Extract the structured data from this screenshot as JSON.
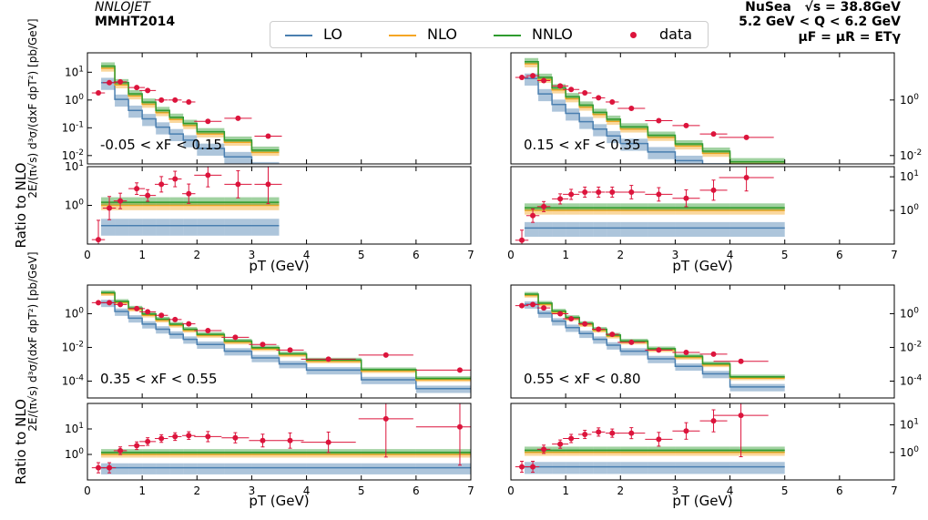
{
  "header": {
    "program": "NNLOJET",
    "pdf": "MMHT2014",
    "experiment": "NuSea",
    "energy": "√s = 38.8GeV",
    "q_range": "5.2 GeV < Q < 6.2 GeV",
    "scale": "μF = μR = ETγ"
  },
  "legend": {
    "items": [
      {
        "label": "LO",
        "color": "#4a7fb0"
      },
      {
        "label": "NLO",
        "color": "#f5a623"
      },
      {
        "label": "NNLO",
        "color": "#2e9b2e"
      },
      {
        "label": "data",
        "color": "#dc143c"
      }
    ]
  },
  "axis_text": {
    "xlabel": "pT (GeV)",
    "ylabel_main": "2E/(π√s) d³σ/(dxF dpT²) [pb/GeV]",
    "ylabel_ratio": "Ratio to NLO"
  },
  "chart_data": [
    {
      "type": "line",
      "panel": "top-left",
      "label": "-0.05 < xF < 0.15",
      "ylog": true,
      "ylim": [
        0.005,
        50
      ],
      "xlim": [
        0,
        7
      ],
      "ratio_ylim": [
        0.1,
        10
      ],
      "xticks": [
        0,
        1,
        2,
        3,
        4,
        5,
        6,
        7
      ],
      "yticks_main": [
        "10^-2",
        "10^-1",
        "10^0",
        "10^1"
      ],
      "yticks_ratio": [
        "10^0",
        "10^1"
      ],
      "bins": [
        0.25,
        0.5,
        0.75,
        1.0,
        1.25,
        1.5,
        1.75,
        2.0,
        2.5,
        3.0,
        3.5
      ],
      "NLO": [
        14,
        3.5,
        1.4,
        0.7,
        0.35,
        0.2,
        0.12,
        0.06,
        0.03,
        0.013
      ],
      "data": [
        {
          "x": 0.2,
          "y": 1.8,
          "xerr": 0.12,
          "yerr_ratio": 0.5,
          "ratio": 0.13
        },
        {
          "x": 0.4,
          "y": 4.2,
          "xerr": 0.12,
          "yerr_ratio": 0.3,
          "ratio": 0.85
        },
        {
          "x": 0.6,
          "y": 4.5,
          "xerr": 0.12,
          "yerr_ratio": 0.2,
          "ratio": 1.3
        },
        {
          "x": 0.9,
          "y": 2.8,
          "xerr": 0.15,
          "yerr_ratio": 0.15,
          "ratio": 2.7
        },
        {
          "x": 1.1,
          "y": 2.2,
          "xerr": 0.15,
          "yerr_ratio": 0.15,
          "ratio": 1.8
        },
        {
          "x": 1.35,
          "y": 1.0,
          "xerr": 0.12,
          "yerr_ratio": 0.2,
          "ratio": 3.5
        },
        {
          "x": 1.6,
          "y": 1.0,
          "xerr": 0.12,
          "yerr_ratio": 0.2,
          "ratio": 4.8
        },
        {
          "x": 1.85,
          "y": 0.85,
          "xerr": 0.12,
          "yerr_ratio": 0.25,
          "ratio": 2.0
        },
        {
          "x": 2.2,
          "y": 0.17,
          "xerr": 0.25,
          "yerr_ratio": 0.3,
          "ratio": 6.0
        },
        {
          "x": 2.75,
          "y": 0.22,
          "xerr": 0.25,
          "yerr_ratio": 0.35,
          "ratio": 3.5
        },
        {
          "x": 3.3,
          "y": 0.05,
          "xerr": 0.25,
          "yerr_ratio": 0.5,
          "ratio": 3.5
        }
      ]
    },
    {
      "type": "line",
      "panel": "top-right",
      "label": "0.15 < xF < 0.35",
      "ylog": true,
      "ylim": [
        0.005,
        50
      ],
      "xlim": [
        0,
        7
      ],
      "ratio_ylim": [
        0.1,
        20
      ],
      "xticks": [
        0,
        1,
        2,
        3,
        4,
        5,
        6,
        7
      ],
      "yticks_main": [
        "10^-2",
        "10^0"
      ],
      "yticks_ratio": [
        "10^0",
        "10^1"
      ],
      "bins": [
        0.25,
        0.5,
        0.75,
        1.0,
        1.25,
        1.5,
        1.75,
        2.0,
        2.5,
        3.0,
        3.5,
        4.0,
        5.0
      ],
      "NLO": [
        20,
        5.5,
        2.3,
        1.1,
        0.55,
        0.3,
        0.17,
        0.09,
        0.045,
        0.022,
        0.012,
        0.005
      ],
      "data": [
        {
          "x": 0.2,
          "y": 6.5,
          "xerr": 0.12,
          "yerr_ratio": 0.3,
          "ratio": 0.13
        },
        {
          "x": 0.4,
          "y": 7.5,
          "xerr": 0.12,
          "yerr_ratio": 0.2,
          "ratio": 0.7
        },
        {
          "x": 0.6,
          "y": 5.0,
          "xerr": 0.12,
          "yerr_ratio": 0.15,
          "ratio": 1.3
        },
        {
          "x": 0.9,
          "y": 3.2,
          "xerr": 0.15,
          "yerr_ratio": 0.15,
          "ratio": 2.2
        },
        {
          "x": 1.1,
          "y": 2.4,
          "xerr": 0.15,
          "yerr_ratio": 0.15,
          "ratio": 3.0
        },
        {
          "x": 1.35,
          "y": 1.8,
          "xerr": 0.12,
          "yerr_ratio": 0.15,
          "ratio": 3.5
        },
        {
          "x": 1.6,
          "y": 1.2,
          "xerr": 0.12,
          "yerr_ratio": 0.15,
          "ratio": 3.5
        },
        {
          "x": 1.85,
          "y": 0.85,
          "xerr": 0.12,
          "yerr_ratio": 0.15,
          "ratio": 3.5
        },
        {
          "x": 2.2,
          "y": 0.5,
          "xerr": 0.25,
          "yerr_ratio": 0.2,
          "ratio": 3.5
        },
        {
          "x": 2.7,
          "y": 0.18,
          "xerr": 0.25,
          "yerr_ratio": 0.2,
          "ratio": 3.0
        },
        {
          "x": 3.2,
          "y": 0.12,
          "xerr": 0.25,
          "yerr_ratio": 0.25,
          "ratio": 2.3
        },
        {
          "x": 3.7,
          "y": 0.06,
          "xerr": 0.25,
          "yerr_ratio": 0.3,
          "ratio": 4.0
        },
        {
          "x": 4.3,
          "y": 0.045,
          "xerr": 0.5,
          "yerr_ratio": 0.4,
          "ratio": 9.5
        }
      ]
    },
    {
      "type": "line",
      "panel": "bottom-left",
      "label": "0.35 < xF < 0.55",
      "ylog": true,
      "ylim": [
        1e-05,
        50
      ],
      "xlim": [
        0,
        7
      ],
      "ratio_ylim": [
        0.1,
        100
      ],
      "xticks": [
        0,
        1,
        2,
        3,
        4,
        5,
        6,
        7
      ],
      "yticks_main": [
        "10^-4",
        "10^-2",
        "10^0"
      ],
      "yticks_ratio": [
        "10^0",
        "10^1"
      ],
      "bins": [
        0.25,
        0.5,
        0.75,
        1.0,
        1.25,
        1.5,
        1.75,
        2.0,
        2.5,
        3.0,
        3.5,
        4.0,
        5.0,
        6.0,
        7.0
      ],
      "NLO": [
        15,
        4.5,
        1.8,
        0.8,
        0.4,
        0.2,
        0.1,
        0.05,
        0.02,
        0.008,
        0.0035,
        0.0015,
        0.0004,
        0.00012
      ],
      "data": [
        {
          "x": 0.2,
          "y": 4.5,
          "xerr": 0.12,
          "yerr_ratio": 0.2,
          "ratio": 0.3
        },
        {
          "x": 0.4,
          "y": 4.5,
          "xerr": 0.12,
          "yerr_ratio": 0.2,
          "ratio": 0.3
        },
        {
          "x": 0.6,
          "y": 3.5,
          "xerr": 0.12,
          "yerr_ratio": 0.15,
          "ratio": 1.4
        },
        {
          "x": 0.9,
          "y": 2.0,
          "xerr": 0.15,
          "yerr_ratio": 0.15,
          "ratio": 2.2
        },
        {
          "x": 1.1,
          "y": 1.3,
          "xerr": 0.15,
          "yerr_ratio": 0.15,
          "ratio": 3.2
        },
        {
          "x": 1.35,
          "y": 0.8,
          "xerr": 0.12,
          "yerr_ratio": 0.15,
          "ratio": 4.2
        },
        {
          "x": 1.6,
          "y": 0.45,
          "xerr": 0.12,
          "yerr_ratio": 0.15,
          "ratio": 5.0
        },
        {
          "x": 1.85,
          "y": 0.25,
          "xerr": 0.12,
          "yerr_ratio": 0.15,
          "ratio": 5.5
        },
        {
          "x": 2.2,
          "y": 0.1,
          "xerr": 0.25,
          "yerr_ratio": 0.2,
          "ratio": 5.0
        },
        {
          "x": 2.7,
          "y": 0.04,
          "xerr": 0.25,
          "yerr_ratio": 0.2,
          "ratio": 4.5
        },
        {
          "x": 3.2,
          "y": 0.015,
          "xerr": 0.25,
          "yerr_ratio": 0.25,
          "ratio": 3.5
        },
        {
          "x": 3.7,
          "y": 0.007,
          "xerr": 0.25,
          "yerr_ratio": 0.3,
          "ratio": 3.5
        },
        {
          "x": 4.4,
          "y": 0.002,
          "xerr": 0.5,
          "yerr_ratio": 0.4,
          "ratio": 3.0
        },
        {
          "x": 5.45,
          "y": 0.0035,
          "xerr": 0.5,
          "yerr_ratio": 1.5,
          "ratio": 25
        },
        {
          "x": 6.8,
          "y": 0.00045,
          "xerr": 0.8,
          "yerr_ratio": 1.5,
          "ratio": 12
        }
      ]
    },
    {
      "type": "line",
      "panel": "bottom-right",
      "label": "0.55 < xF < 0.80",
      "ylog": true,
      "ylim": [
        1e-05,
        50
      ],
      "xlim": [
        0,
        7
      ],
      "ratio_ylim": [
        0.1,
        60
      ],
      "xticks": [
        0,
        1,
        2,
        3,
        4,
        5,
        6,
        7
      ],
      "yticks_main": [
        "10^-4",
        "10^-2",
        "10^0"
      ],
      "yticks_ratio": [
        "10^0",
        "10^1"
      ],
      "bins": [
        0.25,
        0.5,
        0.75,
        1.0,
        1.25,
        1.5,
        1.75,
        2.0,
        2.5,
        3.0,
        3.5,
        4.0,
        5.0
      ],
      "NLO": [
        12,
        3.5,
        1.2,
        0.5,
        0.22,
        0.1,
        0.045,
        0.02,
        0.007,
        0.0025,
        0.0009,
        0.00015
      ],
      "data": [
        {
          "x": 0.2,
          "y": 3.0,
          "xerr": 0.12,
          "yerr_ratio": 0.2,
          "ratio": 0.3
        },
        {
          "x": 0.4,
          "y": 3.5,
          "xerr": 0.12,
          "yerr_ratio": 0.2,
          "ratio": 0.3
        },
        {
          "x": 0.6,
          "y": 2.2,
          "xerr": 0.12,
          "yerr_ratio": 0.15,
          "ratio": 1.3
        },
        {
          "x": 0.9,
          "y": 1.0,
          "xerr": 0.15,
          "yerr_ratio": 0.15,
          "ratio": 2.0
        },
        {
          "x": 1.1,
          "y": 0.5,
          "xerr": 0.15,
          "yerr_ratio": 0.15,
          "ratio": 3.2
        },
        {
          "x": 1.35,
          "y": 0.25,
          "xerr": 0.12,
          "yerr_ratio": 0.15,
          "ratio": 4.5
        },
        {
          "x": 1.6,
          "y": 0.12,
          "xerr": 0.12,
          "yerr_ratio": 0.15,
          "ratio": 5.5
        },
        {
          "x": 1.85,
          "y": 0.06,
          "xerr": 0.12,
          "yerr_ratio": 0.15,
          "ratio": 5.0
        },
        {
          "x": 2.2,
          "y": 0.02,
          "xerr": 0.25,
          "yerr_ratio": 0.2,
          "ratio": 5.0
        },
        {
          "x": 2.7,
          "y": 0.007,
          "xerr": 0.25,
          "yerr_ratio": 0.25,
          "ratio": 3.0
        },
        {
          "x": 3.2,
          "y": 0.005,
          "xerr": 0.25,
          "yerr_ratio": 0.3,
          "ratio": 6.0
        },
        {
          "x": 3.7,
          "y": 0.004,
          "xerr": 0.25,
          "yerr_ratio": 0.4,
          "ratio": 14
        },
        {
          "x": 4.2,
          "y": 0.0015,
          "xerr": 0.5,
          "yerr_ratio": 1.5,
          "ratio": 22
        }
      ]
    }
  ]
}
